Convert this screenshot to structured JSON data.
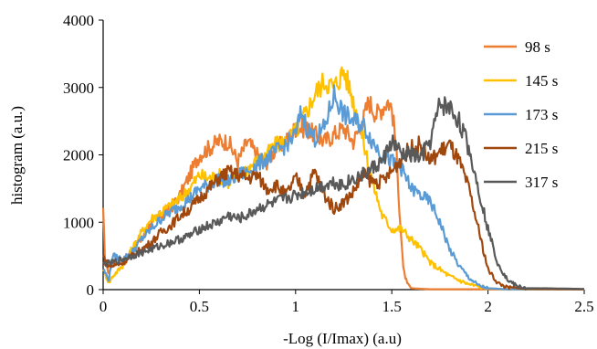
{
  "chart_data": {
    "type": "line",
    "xlabel": "-Log (I/Imax) (a.u)",
    "ylabel": "histogram (a.u.)",
    "xlim": [
      0,
      2.5
    ],
    "ylim": [
      0,
      4000
    ],
    "xticks": [
      0,
      0.5,
      1,
      1.5,
      2,
      2.5
    ],
    "xtick_labels": [
      "0",
      "0.5",
      "1",
      "1.5",
      "2",
      "2.5"
    ],
    "yticks": [
      0,
      1000,
      2000,
      3000,
      4000
    ],
    "ytick_labels": [
      "0",
      "1000",
      "2000",
      "3000",
      "4000"
    ],
    "grid": false,
    "legend_position": "right",
    "series": [
      {
        "name": "98 s",
        "color": "#ED7D31",
        "points": [
          [
            0,
            1150
          ],
          [
            0.01,
            400
          ],
          [
            0.03,
            250
          ],
          [
            0.05,
            400
          ],
          [
            0.1,
            400
          ],
          [
            0.15,
            600
          ],
          [
            0.2,
            750
          ],
          [
            0.25,
            1000
          ],
          [
            0.3,
            1100
          ],
          [
            0.35,
            1200
          ],
          [
            0.4,
            1400
          ],
          [
            0.45,
            1700
          ],
          [
            0.5,
            2000
          ],
          [
            0.55,
            2100
          ],
          [
            0.6,
            2200
          ],
          [
            0.65,
            2200
          ],
          [
            0.7,
            1900
          ],
          [
            0.75,
            2200
          ],
          [
            0.8,
            2000
          ],
          [
            0.85,
            1900
          ],
          [
            0.9,
            2100
          ],
          [
            0.95,
            2200
          ],
          [
            1.0,
            2400
          ],
          [
            1.05,
            2400
          ],
          [
            1.1,
            2300
          ],
          [
            1.15,
            2200
          ],
          [
            1.2,
            2300
          ],
          [
            1.25,
            2400
          ],
          [
            1.3,
            2200
          ],
          [
            1.35,
            2500
          ],
          [
            1.38,
            2800
          ],
          [
            1.42,
            2600
          ],
          [
            1.45,
            2700
          ],
          [
            1.48,
            2800
          ],
          [
            1.5,
            2700
          ],
          [
            1.52,
            2200
          ],
          [
            1.54,
            1200
          ],
          [
            1.56,
            300
          ],
          [
            1.58,
            80
          ],
          [
            1.6,
            20
          ],
          [
            1.7,
            5
          ],
          [
            2.5,
            5
          ]
        ]
      },
      {
        "name": "145 s",
        "color": "#FFC000",
        "points": [
          [
            0,
            300
          ],
          [
            0.03,
            100
          ],
          [
            0.05,
            200
          ],
          [
            0.1,
            350
          ],
          [
            0.15,
            600
          ],
          [
            0.2,
            850
          ],
          [
            0.25,
            1050
          ],
          [
            0.3,
            1150
          ],
          [
            0.35,
            1250
          ],
          [
            0.4,
            1350
          ],
          [
            0.45,
            1500
          ],
          [
            0.5,
            1700
          ],
          [
            0.55,
            1650
          ],
          [
            0.6,
            1700
          ],
          [
            0.65,
            1600
          ],
          [
            0.7,
            1700
          ],
          [
            0.75,
            1800
          ],
          [
            0.8,
            1900
          ],
          [
            0.85,
            2000
          ],
          [
            0.9,
            2150
          ],
          [
            0.95,
            2200
          ],
          [
            1.0,
            2350
          ],
          [
            1.05,
            2600
          ],
          [
            1.1,
            2900
          ],
          [
            1.15,
            3100
          ],
          [
            1.2,
            3000
          ],
          [
            1.25,
            3250
          ],
          [
            1.28,
            3000
          ],
          [
            1.32,
            2600
          ],
          [
            1.36,
            2100
          ],
          [
            1.4,
            1600
          ],
          [
            1.45,
            1100
          ],
          [
            1.5,
            900
          ],
          [
            1.55,
            900
          ],
          [
            1.6,
            750
          ],
          [
            1.65,
            600
          ],
          [
            1.7,
            400
          ],
          [
            1.8,
            200
          ],
          [
            1.9,
            80
          ],
          [
            2.0,
            20
          ],
          [
            2.1,
            5
          ],
          [
            2.5,
            5
          ]
        ]
      },
      {
        "name": "173 s",
        "color": "#5B9BD5",
        "points": [
          [
            0,
            300
          ],
          [
            0.03,
            150
          ],
          [
            0.05,
            500
          ],
          [
            0.1,
            450
          ],
          [
            0.15,
            550
          ],
          [
            0.2,
            750
          ],
          [
            0.25,
            900
          ],
          [
            0.3,
            1050
          ],
          [
            0.35,
            1150
          ],
          [
            0.4,
            1250
          ],
          [
            0.45,
            1350
          ],
          [
            0.5,
            1500
          ],
          [
            0.55,
            1550
          ],
          [
            0.6,
            1650
          ],
          [
            0.65,
            1600
          ],
          [
            0.7,
            1700
          ],
          [
            0.75,
            1750
          ],
          [
            0.8,
            1850
          ],
          [
            0.85,
            1950
          ],
          [
            0.9,
            2050
          ],
          [
            0.95,
            2150
          ],
          [
            1.0,
            2300
          ],
          [
            1.03,
            2650
          ],
          [
            1.06,
            2400
          ],
          [
            1.1,
            2250
          ],
          [
            1.15,
            2400
          ],
          [
            1.2,
            2900
          ],
          [
            1.25,
            2600
          ],
          [
            1.3,
            2500
          ],
          [
            1.35,
            2450
          ],
          [
            1.4,
            2200
          ],
          [
            1.45,
            2000
          ],
          [
            1.5,
            1900
          ],
          [
            1.55,
            1800
          ],
          [
            1.6,
            1500
          ],
          [
            1.65,
            1400
          ],
          [
            1.7,
            1300
          ],
          [
            1.75,
            1000
          ],
          [
            1.8,
            600
          ],
          [
            1.85,
            350
          ],
          [
            1.9,
            180
          ],
          [
            1.95,
            60
          ],
          [
            2.0,
            20
          ],
          [
            2.1,
            5
          ],
          [
            2.5,
            5
          ]
        ]
      },
      {
        "name": "215 s",
        "color": "#A0470E",
        "points": [
          [
            0,
            500
          ],
          [
            0.03,
            350
          ],
          [
            0.05,
            350
          ],
          [
            0.1,
            400
          ],
          [
            0.15,
            500
          ],
          [
            0.2,
            600
          ],
          [
            0.25,
            700
          ],
          [
            0.3,
            850
          ],
          [
            0.35,
            950
          ],
          [
            0.4,
            1100
          ],
          [
            0.45,
            1200
          ],
          [
            0.5,
            1350
          ],
          [
            0.55,
            1500
          ],
          [
            0.6,
            1650
          ],
          [
            0.65,
            1750
          ],
          [
            0.7,
            1700
          ],
          [
            0.75,
            1650
          ],
          [
            0.8,
            1700
          ],
          [
            0.85,
            1500
          ],
          [
            0.9,
            1550
          ],
          [
            0.95,
            1400
          ],
          [
            1.0,
            1650
          ],
          [
            1.05,
            1450
          ],
          [
            1.1,
            1750
          ],
          [
            1.15,
            1400
          ],
          [
            1.2,
            1200
          ],
          [
            1.25,
            1300
          ],
          [
            1.3,
            1450
          ],
          [
            1.35,
            1700
          ],
          [
            1.4,
            1600
          ],
          [
            1.45,
            1600
          ],
          [
            1.5,
            1750
          ],
          [
            1.55,
            1950
          ],
          [
            1.6,
            2100
          ],
          [
            1.65,
            2150
          ],
          [
            1.7,
            1900
          ],
          [
            1.75,
            2050
          ],
          [
            1.8,
            2150
          ],
          [
            1.85,
            1900
          ],
          [
            1.9,
            1500
          ],
          [
            1.95,
            900
          ],
          [
            2.0,
            300
          ],
          [
            2.05,
            100
          ],
          [
            2.1,
            30
          ],
          [
            2.2,
            10
          ],
          [
            2.5,
            5
          ]
        ]
      },
      {
        "name": "317 s",
        "color": "#595959",
        "points": [
          [
            0,
            380
          ],
          [
            0.05,
            400
          ],
          [
            0.1,
            450
          ],
          [
            0.15,
            500
          ],
          [
            0.2,
            550
          ],
          [
            0.25,
            600
          ],
          [
            0.3,
            650
          ],
          [
            0.35,
            700
          ],
          [
            0.4,
            750
          ],
          [
            0.45,
            800
          ],
          [
            0.5,
            900
          ],
          [
            0.55,
            950
          ],
          [
            0.6,
            1000
          ],
          [
            0.65,
            1100
          ],
          [
            0.7,
            1050
          ],
          [
            0.75,
            1100
          ],
          [
            0.8,
            1200
          ],
          [
            0.85,
            1250
          ],
          [
            0.9,
            1300
          ],
          [
            0.95,
            1350
          ],
          [
            1.0,
            1400
          ],
          [
            1.05,
            1450
          ],
          [
            1.1,
            1500
          ],
          [
            1.15,
            1550
          ],
          [
            1.2,
            1600
          ],
          [
            1.25,
            1550
          ],
          [
            1.3,
            1650
          ],
          [
            1.35,
            1700
          ],
          [
            1.4,
            1800
          ],
          [
            1.45,
            1900
          ],
          [
            1.5,
            2200
          ],
          [
            1.55,
            2000
          ],
          [
            1.6,
            2000
          ],
          [
            1.65,
            1950
          ],
          [
            1.7,
            2200
          ],
          [
            1.75,
            2750
          ],
          [
            1.8,
            2700
          ],
          [
            1.85,
            2500
          ],
          [
            1.9,
            2100
          ],
          [
            1.95,
            1500
          ],
          [
            2.0,
            900
          ],
          [
            2.05,
            400
          ],
          [
            2.1,
            150
          ],
          [
            2.15,
            50
          ],
          [
            2.2,
            20
          ],
          [
            2.3,
            20
          ],
          [
            2.4,
            15
          ],
          [
            2.5,
            10
          ]
        ]
      }
    ]
  }
}
